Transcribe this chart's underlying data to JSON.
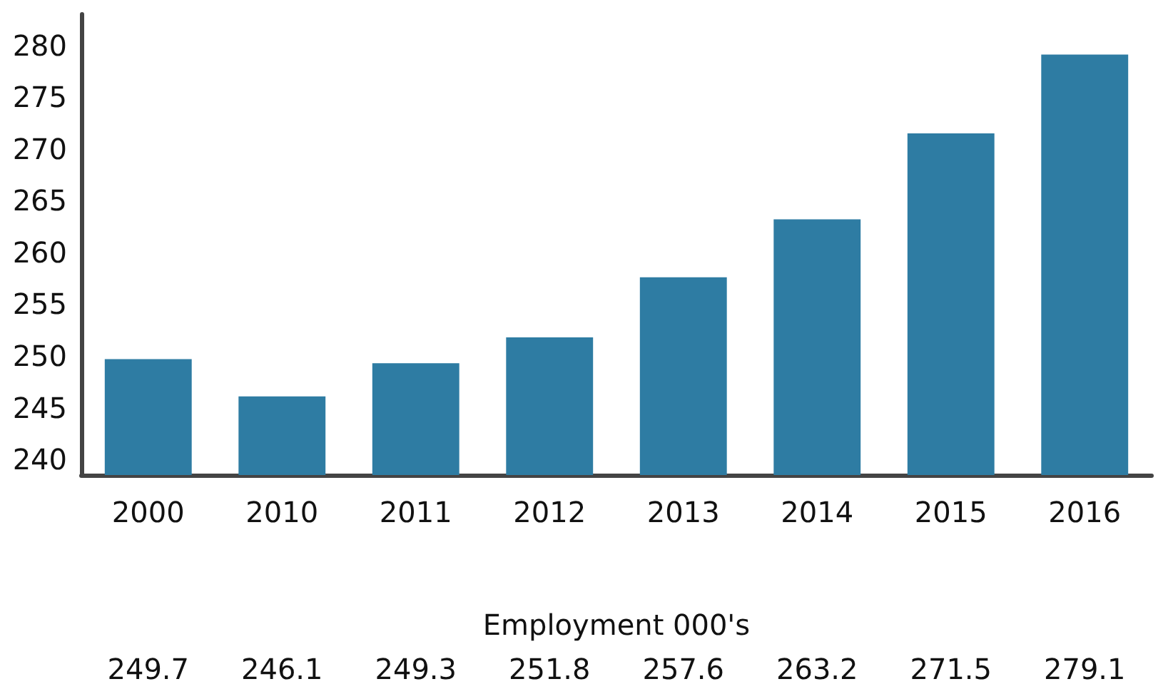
{
  "chart_data": {
    "type": "bar",
    "xlabel": "Employment 000's",
    "categories": [
      "2000",
      "2010",
      "2011",
      "2012",
      "2013",
      "2014",
      "2015",
      "2016"
    ],
    "values": [
      249.7,
      246.1,
      249.3,
      251.8,
      257.6,
      263.2,
      271.5,
      279.1
    ],
    "color": "#2e7ca3",
    "ylim": [
      238.5,
      283
    ],
    "yticks": [
      240,
      245,
      250,
      255,
      260,
      265,
      270,
      275,
      280
    ],
    "grid": false,
    "data_labels": true
  }
}
